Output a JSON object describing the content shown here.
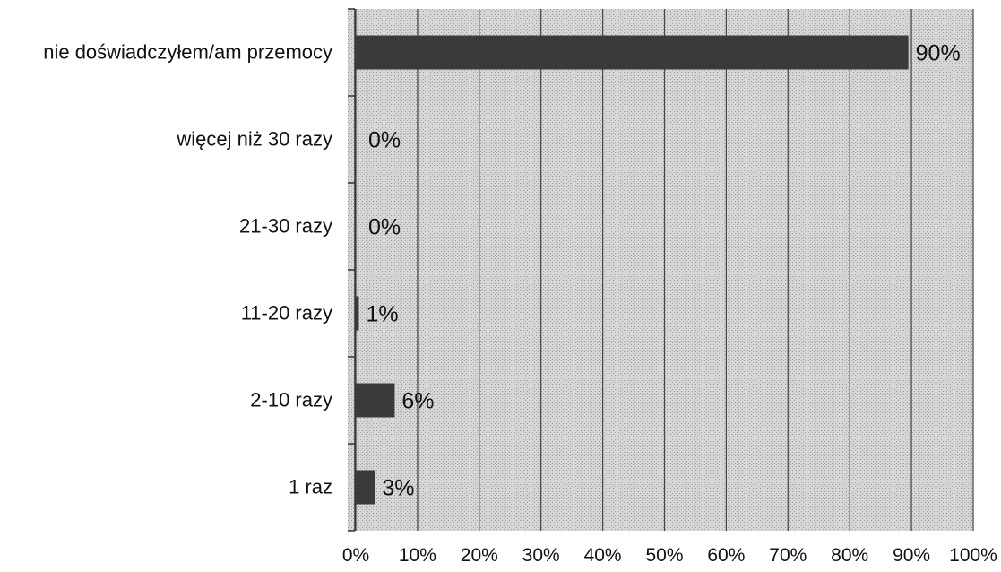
{
  "chart_data": {
    "type": "bar",
    "orientation": "horizontal",
    "categories": [
      "nie doświadczyłem/am przemocy",
      "więcej niż 30 razy",
      "21-30 razy",
      "11-20 razy",
      "2-10 razy",
      "1 raz"
    ],
    "series": [
      {
        "values": [
          89.5,
          0,
          0,
          0.5,
          6.3,
          3.1
        ]
      }
    ],
    "data_labels": [
      "90%",
      "0%",
      "0%",
      "1%",
      "6%",
      "3%"
    ],
    "xlim": [
      0,
      100
    ],
    "x_ticks": [
      "0%",
      "10%",
      "20%",
      "30%",
      "40%",
      "50%",
      "60%",
      "70%",
      "80%",
      "90%",
      "100%"
    ],
    "grid": "vertical",
    "legend": "none",
    "title": "",
    "xlabel": "",
    "ylabel": "",
    "colors": {
      "bar": "#3a3a3a",
      "plot_background": "#dcdcdc",
      "gridline": "#444444",
      "text": "#111111"
    }
  }
}
